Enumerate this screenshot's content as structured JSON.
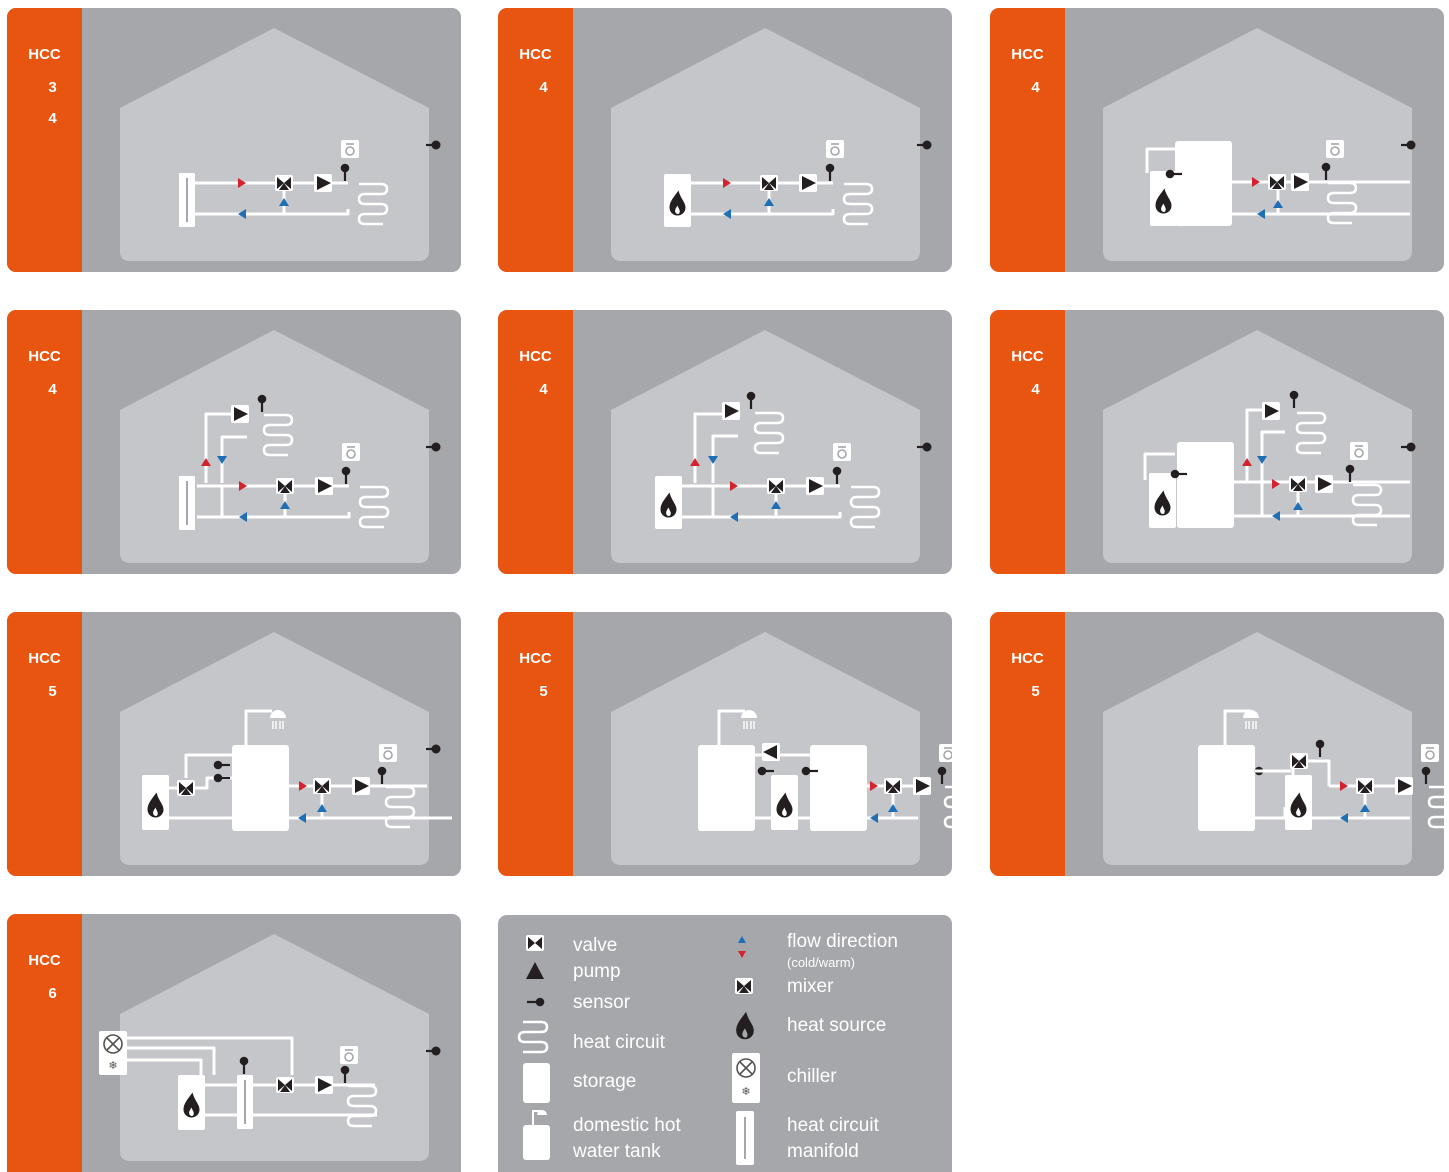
{
  "cards": [
    {
      "hcc": "HCC",
      "nums": [
        "3",
        "4"
      ]
    },
    {
      "hcc": "HCC",
      "nums": [
        "4"
      ]
    },
    {
      "hcc": "HCC",
      "nums": [
        "4"
      ]
    },
    {
      "hcc": "HCC",
      "nums": [
        "4"
      ]
    },
    {
      "hcc": "HCC",
      "nums": [
        "4"
      ]
    },
    {
      "hcc": "HCC",
      "nums": [
        "4"
      ]
    },
    {
      "hcc": "HCC",
      "nums": [
        "5"
      ]
    },
    {
      "hcc": "HCC",
      "nums": [
        "5"
      ]
    },
    {
      "hcc": "HCC",
      "nums": [
        "5"
      ]
    },
    {
      "hcc": "HCC",
      "nums": [
        "6"
      ]
    }
  ],
  "legend": {
    "valve": "valve",
    "pump": "pump",
    "sensor": "sensor",
    "heat_circuit": "heat circuit",
    "storage": "storage",
    "dhw_1": "domestic hot",
    "dhw_2": "water tank",
    "flow_direction": "flow direction",
    "cold_warm": "(cold/warm)",
    "mixer": "mixer",
    "heat_source": "heat source",
    "chiller": "chiller",
    "manifold_1": "heat circuit",
    "manifold_2": "manifold"
  },
  "colors": {
    "orange": "#e85511",
    "card_gray": "#a6a7ab",
    "house_gray": "#c5c6c9",
    "warm_red": "#d2232e",
    "cold_blue": "#1f6fb6",
    "icon_dark": "#231f20"
  }
}
